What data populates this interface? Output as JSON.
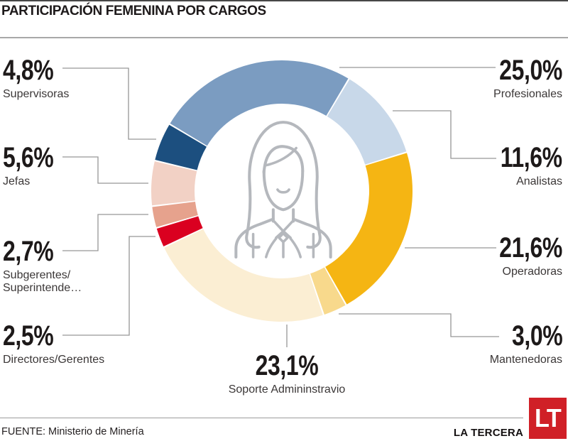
{
  "header": {
    "title": "PARTICIPACIÓN FEMENINA POR CARGOS"
  },
  "chart_data": {
    "type": "pie",
    "variant": "donut",
    "title": "PARTICIPACIÓN FEMENINA POR CARGOS",
    "unit": "%",
    "direction": "clockwise",
    "start_angle_deg": -59.2,
    "legend_position": "callouts-around-donut",
    "segments": [
      {
        "label": "Profesionales",
        "value": 25.0,
        "display": "25,0%",
        "color": "#7b9cc1"
      },
      {
        "label": "Analistas",
        "value": 11.6,
        "display": "11,6%",
        "color": "#c8d8e9"
      },
      {
        "label": "Operadoras",
        "value": 21.6,
        "display": "21,6%",
        "color": "#f5b513"
      },
      {
        "label": "Mantenedoras",
        "value": 3.0,
        "display": "3,0%",
        "color": "#f8d98c"
      },
      {
        "label": "Soporte Admininstravio",
        "value": 23.1,
        "display": "23,1%",
        "color": "#fbeed3"
      },
      {
        "label": "Directores/Gerentes",
        "value": 2.5,
        "display": "2,5%",
        "color": "#da0020"
      },
      {
        "label": "Subgerentes/Superintende…",
        "value": 2.7,
        "display": "2,7%",
        "color": "#e6a28d"
      },
      {
        "label": "Jefas",
        "value": 5.6,
        "display": "5,6%",
        "color": "#f2d1c5"
      },
      {
        "label": "Supervisoras",
        "value": 4.8,
        "display": "4,8%",
        "color": "#1c4f7f"
      }
    ],
    "center_icon": "woman-professional-icon"
  },
  "callouts": {
    "left": [
      {
        "pct": "4,8%",
        "name": "Supervisoras"
      },
      {
        "pct": "5,6%",
        "name": "Jefas"
      },
      {
        "pct": "2,7%",
        "name": "Subgerentes/",
        "name2": "Superintende…"
      },
      {
        "pct": "2,5%",
        "name": "Directores/Gerentes"
      }
    ],
    "right": [
      {
        "pct": "25,0%",
        "name": "Profesionales"
      },
      {
        "pct": "11,6%",
        "name": "Analistas"
      },
      {
        "pct": "21,6%",
        "name": "Operadoras"
      },
      {
        "pct": "3,0%",
        "name": "Mantenedoras"
      }
    ],
    "bottom": {
      "pct": "23,1%",
      "name": "Soporte Admininstravio"
    }
  },
  "icons": {
    "center": "woman-professional-icon",
    "logo": "lt-logo"
  },
  "colors": {
    "leader_line": "#969696",
    "logo_red": "#d02027",
    "icon_stroke": "#b5b8bd"
  },
  "footer": {
    "source": "FUENTE: Ministerio de Minería",
    "brand": "LA TERCERA",
    "logo_text": "LT"
  }
}
